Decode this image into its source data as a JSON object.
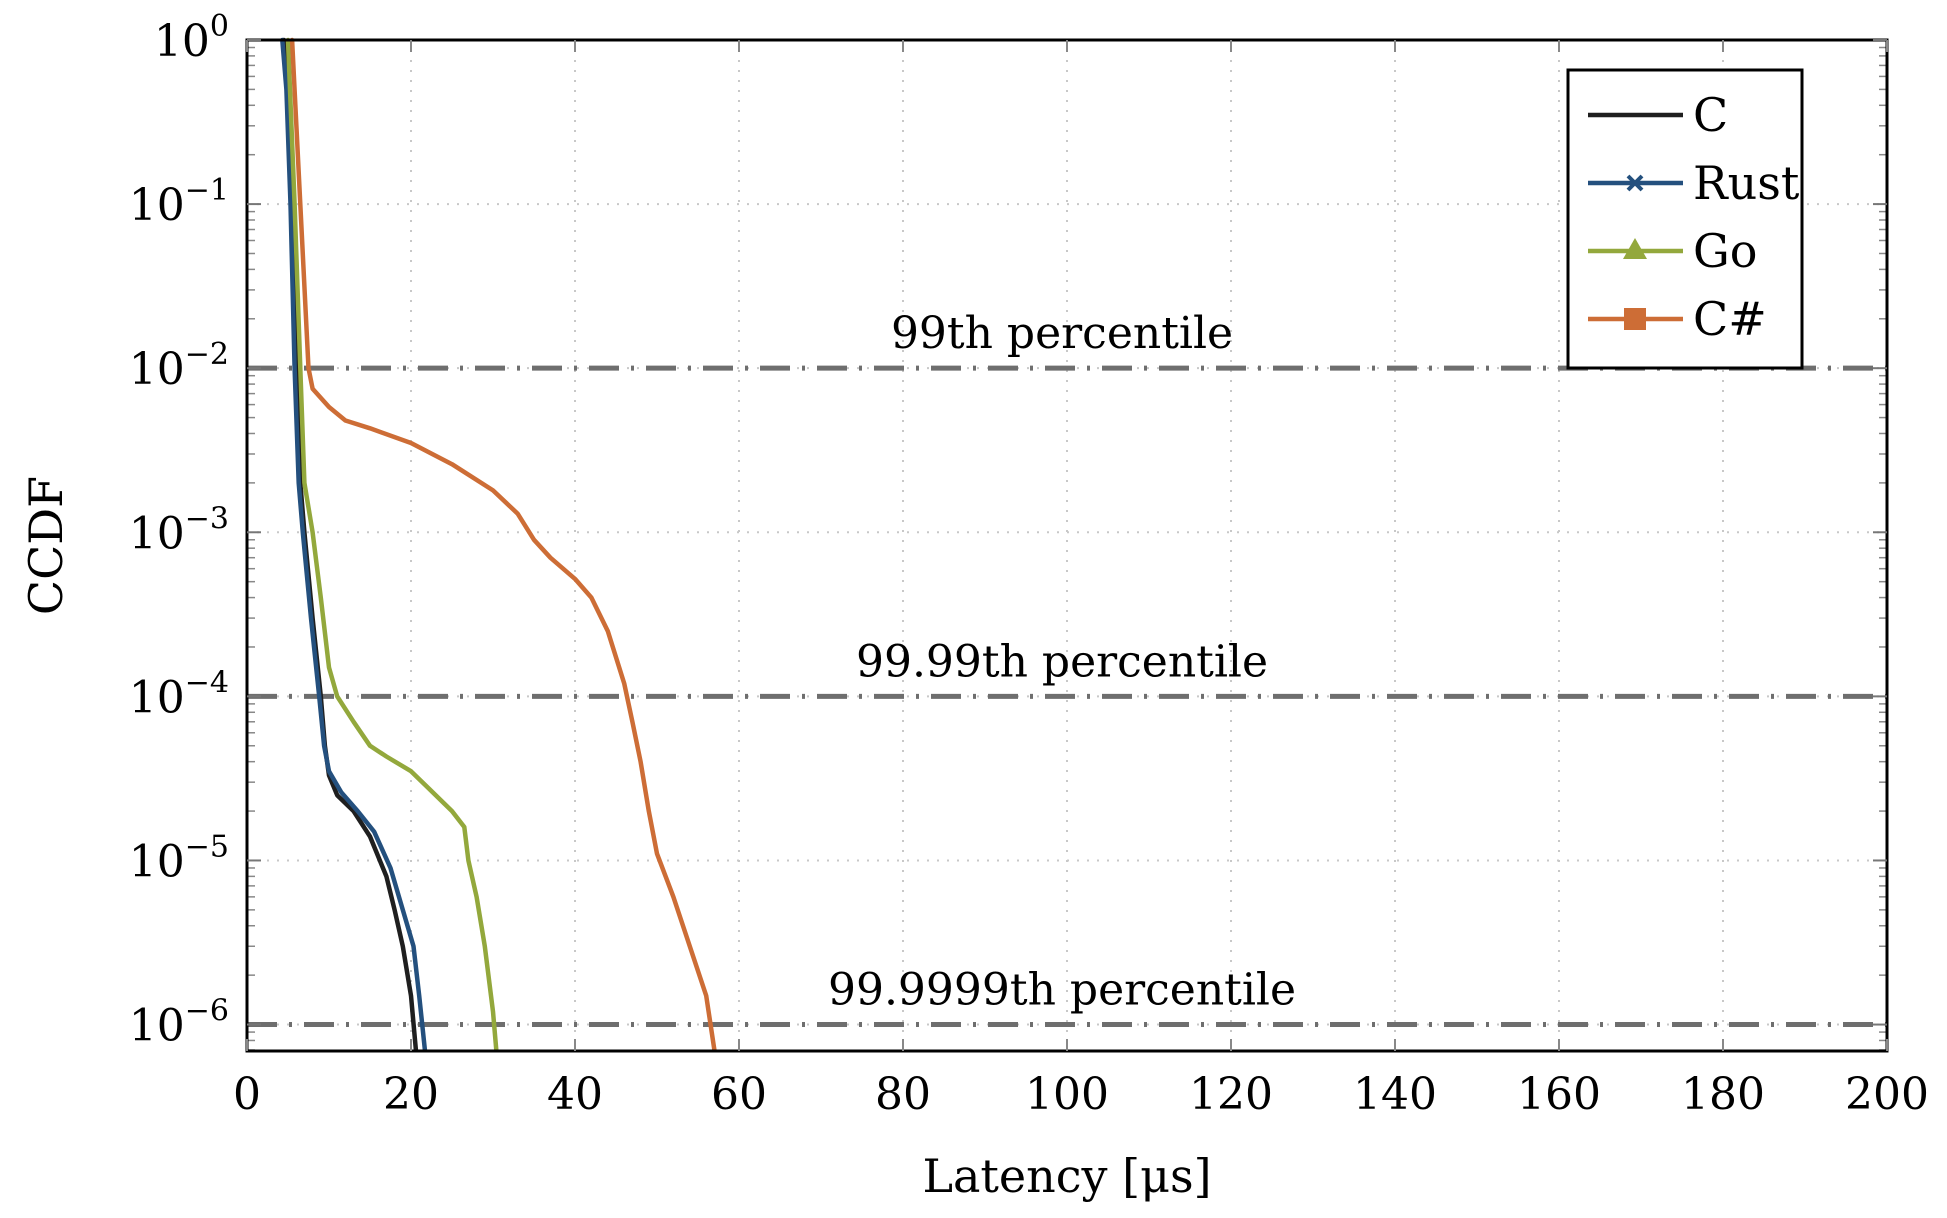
{
  "chart_data": {
    "type": "line",
    "title": "",
    "xlabel": "Latency [μs]",
    "ylabel": "CCDF",
    "xscale": "linear",
    "yscale": "log",
    "xlim": [
      0,
      200
    ],
    "ylim": [
      6.9e-07,
      1
    ],
    "grid": true,
    "legend_position": "top-right",
    "x_ticks": [
      0,
      20,
      40,
      60,
      80,
      100,
      120,
      140,
      160,
      180,
      200
    ],
    "x_tick_labels": [
      "0",
      "20",
      "40",
      "60",
      "80",
      "100",
      "120",
      "140",
      "160",
      "180",
      "200"
    ],
    "y_ticks": [
      1,
      0.1,
      0.01,
      0.001,
      0.0001,
      1e-05,
      1e-06
    ],
    "y_tick_labels": [
      {
        "base": "10",
        "exp": "0"
      },
      {
        "base": "10",
        "exp": "−1"
      },
      {
        "base": "10",
        "exp": "−2"
      },
      {
        "base": "10",
        "exp": "−3"
      },
      {
        "base": "10",
        "exp": "−4"
      },
      {
        "base": "10",
        "exp": "−5"
      },
      {
        "base": "10",
        "exp": "−6"
      }
    ],
    "reference_lines": [
      {
        "y": 0.01,
        "label": "99th percentile"
      },
      {
        "y": 0.0001,
        "label": "99.99th percentile"
      },
      {
        "y": 1e-06,
        "label": "99.9999th percentile"
      }
    ],
    "series": [
      {
        "name": "C",
        "color": "#1f1f1f",
        "marker": "none",
        "points": [
          [
            4.5,
            1
          ],
          [
            5,
            0.5
          ],
          [
            5.5,
            0.1
          ],
          [
            6,
            0.01
          ],
          [
            6.5,
            0.002
          ],
          [
            7,
            0.001
          ],
          [
            8,
            0.0003
          ],
          [
            9,
            0.0001
          ],
          [
            9.5,
            5e-05
          ],
          [
            10,
            3.3e-05
          ],
          [
            11,
            2.5e-05
          ],
          [
            13,
            2e-05
          ],
          [
            15,
            1.4e-05
          ],
          [
            17,
            8e-06
          ],
          [
            18,
            5e-06
          ],
          [
            19,
            3e-06
          ],
          [
            20,
            1.5e-06
          ],
          [
            20.6,
            7e-07
          ]
        ]
      },
      {
        "name": "Rust",
        "color": "#24507e",
        "marker": "x",
        "points": [
          [
            4.3,
            1
          ],
          [
            4.8,
            0.5
          ],
          [
            5.3,
            0.1
          ],
          [
            5.8,
            0.01
          ],
          [
            6.3,
            0.002
          ],
          [
            6.8,
            0.001
          ],
          [
            7.8,
            0.0003
          ],
          [
            8.8,
            0.0001
          ],
          [
            9.4,
            5e-05
          ],
          [
            10,
            3.5e-05
          ],
          [
            11.5,
            2.6e-05
          ],
          [
            13.5,
            2e-05
          ],
          [
            15.5,
            1.5e-05
          ],
          [
            17.5,
            9e-06
          ],
          [
            19,
            5e-06
          ],
          [
            20.3,
            3e-06
          ],
          [
            21,
            1.5e-06
          ],
          [
            21.7,
            7e-07
          ]
        ]
      },
      {
        "name": "Go",
        "color": "#93a83c",
        "marker": "triangle",
        "points": [
          [
            5,
            1
          ],
          [
            5.8,
            0.1
          ],
          [
            6.5,
            0.01
          ],
          [
            7,
            0.002
          ],
          [
            8,
            0.001
          ],
          [
            9,
            0.0004
          ],
          [
            10,
            0.00015
          ],
          [
            11,
            0.0001
          ],
          [
            13,
            7e-05
          ],
          [
            15,
            5e-05
          ],
          [
            17,
            4.3e-05
          ],
          [
            20,
            3.5e-05
          ],
          [
            22,
            2.8e-05
          ],
          [
            25,
            2e-05
          ],
          [
            26.5,
            1.6e-05
          ],
          [
            27,
            1e-05
          ],
          [
            28,
            6e-06
          ],
          [
            29,
            3e-06
          ],
          [
            30,
            1.2e-06
          ],
          [
            30.4,
            7e-07
          ]
        ]
      },
      {
        "name": "C#",
        "color": "#cd6d36",
        "marker": "square",
        "points": [
          [
            5.5,
            1
          ],
          [
            6.5,
            0.1
          ],
          [
            7.5,
            0.01
          ],
          [
            8,
            0.0075
          ],
          [
            10,
            0.0058
          ],
          [
            12,
            0.0048
          ],
          [
            15,
            0.0043
          ],
          [
            20,
            0.0035
          ],
          [
            25,
            0.0026
          ],
          [
            30,
            0.0018
          ],
          [
            33,
            0.0013
          ],
          [
            35,
            0.0009
          ],
          [
            37,
            0.0007
          ],
          [
            40,
            0.00052
          ],
          [
            42,
            0.0004
          ],
          [
            44,
            0.00025
          ],
          [
            46,
            0.00012
          ],
          [
            47,
            7e-05
          ],
          [
            48,
            4e-05
          ],
          [
            49,
            2e-05
          ],
          [
            50,
            1.1e-05
          ],
          [
            52,
            6e-06
          ],
          [
            54,
            3e-06
          ],
          [
            56,
            1.5e-06
          ],
          [
            57,
            7e-07
          ]
        ]
      }
    ]
  }
}
